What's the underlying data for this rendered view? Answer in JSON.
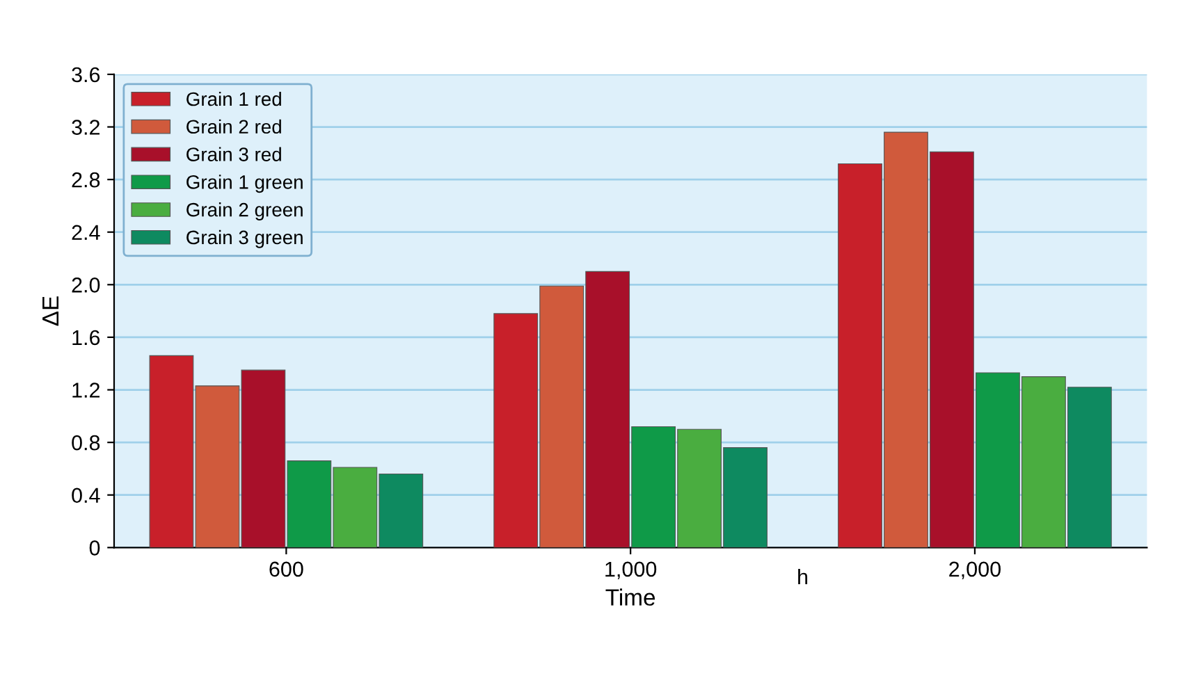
{
  "chart_data": {
    "type": "bar",
    "xlabel": "Time",
    "ylabel": "ΔE",
    "categories": [
      "600",
      "1,000",
      "2,000"
    ],
    "series": [
      {
        "name": "Grain 1 red",
        "color": "#c8202a",
        "values": [
          1.46,
          1.78,
          2.92
        ]
      },
      {
        "name": "Grain 2 red",
        "color": "#d05a3c",
        "values": [
          1.23,
          1.99,
          3.16
        ]
      },
      {
        "name": "Grain 3 red",
        "color": "#a8102a",
        "values": [
          1.35,
          2.1,
          3.01
        ]
      },
      {
        "name": "Grain 1 green",
        "color": "#0f9a48",
        "values": [
          0.66,
          0.92,
          1.33
        ]
      },
      {
        "name": "Grain 2 green",
        "color": "#4aad40",
        "values": [
          0.61,
          0.9,
          1.3
        ]
      },
      {
        "name": "Grain 3 green",
        "color": "#0e8a60",
        "values": [
          0.56,
          0.76,
          1.22
        ]
      }
    ],
    "ylim": [
      0,
      3.6
    ],
    "yticks": [
      0,
      0.4,
      0.8,
      1.2,
      1.6,
      {
        "value": 2,
        "label": "2.0"
      },
      2.4,
      2.8,
      3.2,
      3.6
    ],
    "grid": "y",
    "legend": "top left",
    "annotations": [
      "h"
    ]
  }
}
